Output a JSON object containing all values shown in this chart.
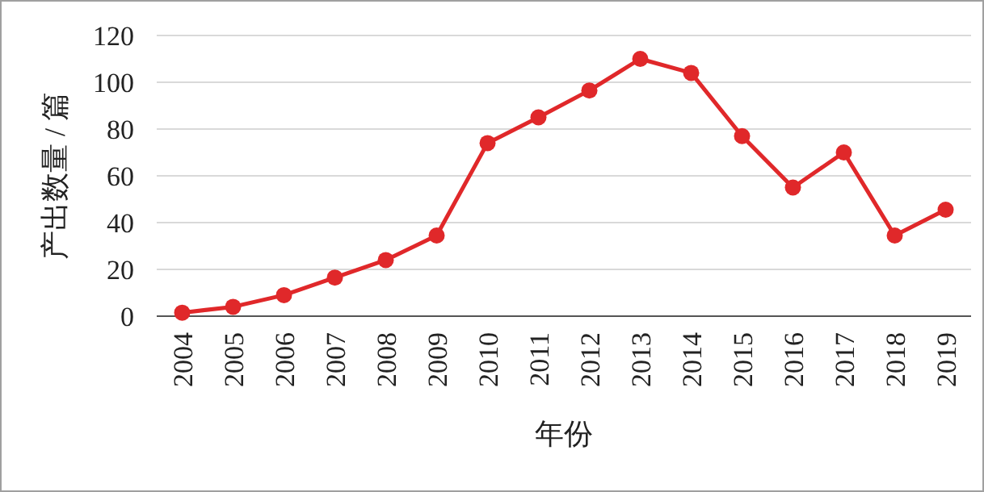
{
  "chart_data": {
    "type": "line",
    "xlabel": "年份",
    "ylabel": "产出数量 / 篇",
    "categories": [
      "2004",
      "2005",
      "2006",
      "2007",
      "2008",
      "2009",
      "2010",
      "2011",
      "2012",
      "2013",
      "2014",
      "2015",
      "2016",
      "2017",
      "2018",
      "2019"
    ],
    "series": [
      {
        "color": "#e0282a",
        "values": [
          1.5,
          4,
          9,
          16.5,
          24,
          34.5,
          74,
          85,
          96.5,
          110,
          104,
          77,
          55,
          70,
          34.5,
          45.5
        ]
      }
    ],
    "ylim": [
      0,
      120
    ],
    "yticks": [
      0,
      20,
      40,
      60,
      80,
      100,
      120
    ],
    "grid": "y",
    "marker": "circle",
    "line_style": "solid"
  }
}
